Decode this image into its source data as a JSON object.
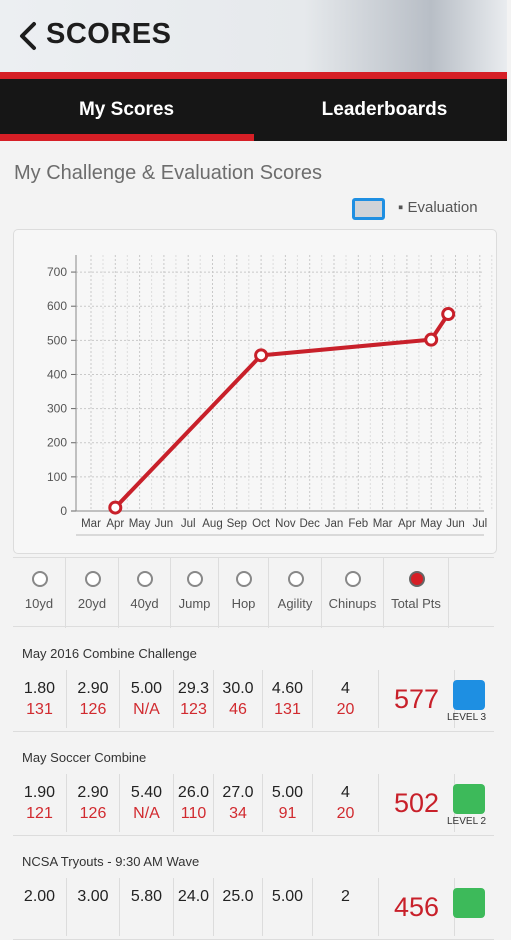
{
  "header": {
    "title": "SCORES",
    "back_icon": "chevron-left-icon"
  },
  "tabs": [
    {
      "label": "My Scores",
      "active": true
    },
    {
      "label": "Leaderboards",
      "active": false
    }
  ],
  "section_title": "My Challenge & Evaluation Scores",
  "legend": {
    "label": "▪ Evaluation",
    "color": "#1e8fe2"
  },
  "chart_data": {
    "type": "line",
    "x_tick_labels": [
      "Mar",
      "Apr",
      "May",
      "Jun",
      "Jul",
      "Aug",
      "Sep",
      "Oct",
      "Nov",
      "Dec",
      "Jan",
      "Feb",
      "Mar",
      "Apr",
      "May",
      "Jun",
      "Jul"
    ],
    "y_ticks": [
      0,
      100,
      200,
      300,
      400,
      500,
      600,
      700
    ],
    "ylim": [
      0,
      750
    ],
    "grid": true,
    "series": [
      {
        "color": "#c8202a",
        "points": [
          {
            "x": "Apr",
            "y": 10
          },
          {
            "x": "Oct",
            "y": 456
          },
          {
            "x": "May (2nd year)",
            "y": 502
          },
          {
            "x": "May (2nd year, late)",
            "y": 577
          }
        ]
      }
    ]
  },
  "filters": [
    {
      "label": "10yd",
      "selected": false
    },
    {
      "label": "20yd",
      "selected": false
    },
    {
      "label": "40yd",
      "selected": false
    },
    {
      "label": "Jump",
      "selected": false
    },
    {
      "label": "Hop",
      "selected": false
    },
    {
      "label": "Agility",
      "selected": false
    },
    {
      "label": "Chinups",
      "selected": false
    },
    {
      "label": "Total Pts",
      "selected": true
    }
  ],
  "entries": [
    {
      "name": "May 2016 Combine Challenge",
      "values": [
        "1.80",
        "2.90",
        "5.00",
        "29.3",
        "30.0",
        "4.60",
        "4"
      ],
      "points": [
        "131",
        "126",
        "N/A",
        "123",
        "46",
        "131",
        "20"
      ],
      "total": "577",
      "level": "LEVEL 3",
      "level_color": "#1e8fe2"
    },
    {
      "name": "May Soccer Combine",
      "values": [
        "1.90",
        "2.90",
        "5.40",
        "26.0",
        "27.0",
        "5.00",
        "4"
      ],
      "points": [
        "121",
        "126",
        "N/A",
        "110",
        "34",
        "91",
        "20"
      ],
      "total": "502",
      "level": "LEVEL 2",
      "level_color": "#3dba5a"
    },
    {
      "name": "NCSA Tryouts - 9:30 AM Wave",
      "values": [
        "2.00",
        "3.00",
        "5.80",
        "24.0",
        "25.0",
        "5.00",
        "2"
      ],
      "points": [
        "",
        "",
        "",
        "",
        "",
        "",
        ""
      ],
      "total": "456",
      "level": "",
      "level_color": "#3dba5a"
    }
  ]
}
